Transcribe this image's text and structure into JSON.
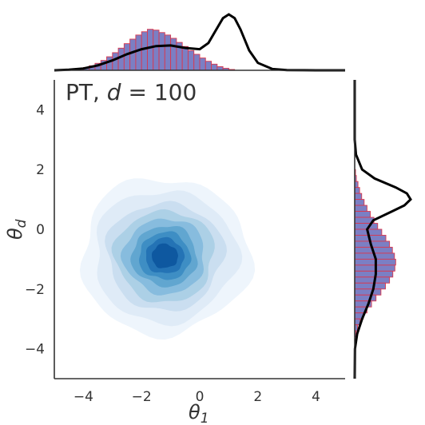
{
  "chart_data": {
    "type": "jointplot",
    "panel_title": "PT,  d = 100",
    "panel_title_prefix": "PT,  ",
    "panel_title_var": "d",
    "panel_title_eq": " = 100",
    "xlabel": "θ",
    "xlabel_sub": "1",
    "ylabel": "θ",
    "ylabel_sub": "d",
    "xlim": [
      -5,
      5
    ],
    "ylim": [
      -5,
      5
    ],
    "xticks": [
      -4,
      -2,
      0,
      2,
      4
    ],
    "yticks": [
      -4,
      -2,
      0,
      2,
      4
    ],
    "xtick_labels": [
      "−4",
      "−2",
      "0",
      "2",
      "4"
    ],
    "ytick_labels": [
      "−4",
      "−2",
      "0",
      "2",
      "4"
    ],
    "grid": false,
    "contour": {
      "center": [
        -1.2,
        -0.9
      ],
      "level_radii": [
        2.9,
        2.45,
        2.0,
        1.7,
        1.4,
        1.12,
        0.88,
        0.66,
        0.45
      ],
      "level_colors": [
        "#eef5fc",
        "#dfebf7",
        "#cadef0",
        "#acd0e6",
        "#87bcde",
        "#61a6d0",
        "#3e8ec4",
        "#2473b5",
        "#0e58a0"
      ],
      "shape_scale": [
        1.0,
        0.86
      ]
    },
    "top_histogram": {
      "bin_start": -4.4,
      "bin_width": 0.2,
      "heights": [
        0.02,
        0.04,
        0.07,
        0.11,
        0.17,
        0.24,
        0.33,
        0.43,
        0.54,
        0.65,
        0.76,
        0.86,
        0.94,
        1.0,
        0.98,
        0.92,
        0.86,
        0.78,
        0.68,
        0.58,
        0.48,
        0.39,
        0.3,
        0.22,
        0.15,
        0.09,
        0.05,
        0.02
      ],
      "max_density": 0.33
    },
    "top_density": {
      "x": [
        -5.0,
        -4.5,
        -4.0,
        -3.5,
        -3.0,
        -2.5,
        -2.0,
        -1.5,
        -1.0,
        -0.5,
        0.0,
        0.3,
        0.6,
        0.8,
        1.0,
        1.2,
        1.4,
        1.7,
        2.0,
        2.5,
        3.0,
        4.0,
        5.0
      ],
      "y": [
        0.0,
        0.005,
        0.015,
        0.04,
        0.08,
        0.13,
        0.17,
        0.195,
        0.2,
        0.18,
        0.17,
        0.22,
        0.34,
        0.42,
        0.45,
        0.42,
        0.33,
        0.16,
        0.06,
        0.01,
        0.002,
        0.0,
        0.0
      ]
    },
    "right_histogram": {
      "bin_start": 2.0,
      "bin_width": -0.2,
      "heights": [
        0.02,
        0.04,
        0.08,
        0.12,
        0.17,
        0.23,
        0.3,
        0.38,
        0.47,
        0.56,
        0.66,
        0.76,
        0.85,
        0.92,
        0.97,
        1.0,
        0.98,
        0.93,
        0.85,
        0.75,
        0.64,
        0.52,
        0.41,
        0.3,
        0.21,
        0.13,
        0.07,
        0.03
      ],
      "max_density": 0.33
    },
    "right_density": {
      "y": [
        -5.0,
        -4.0,
        -3.5,
        -3.0,
        -2.5,
        -2.0,
        -1.5,
        -1.0,
        -0.5,
        0.0,
        0.3,
        0.6,
        0.8,
        1.0,
        1.2,
        1.4,
        1.7,
        2.0,
        2.5,
        3.0,
        5.0
      ],
      "x": [
        0.0,
        0.002,
        0.02,
        0.06,
        0.11,
        0.15,
        0.17,
        0.17,
        0.13,
        0.1,
        0.15,
        0.3,
        0.4,
        0.45,
        0.42,
        0.33,
        0.16,
        0.06,
        0.01,
        0.0,
        0.0
      ]
    }
  }
}
